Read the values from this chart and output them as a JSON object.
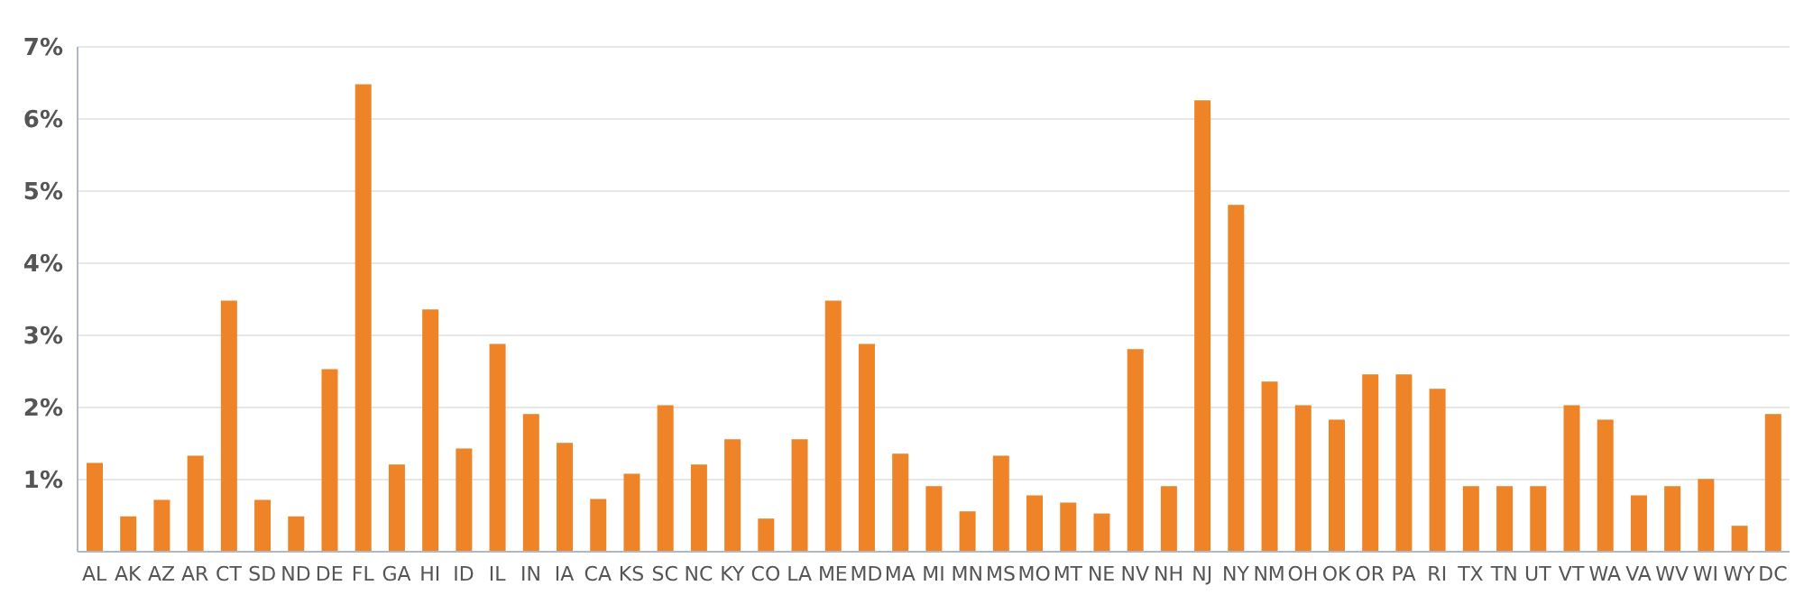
{
  "chart_data": {
    "type": "bar",
    "categories": [
      "AL",
      "AK",
      "AZ",
      "AR",
      "CT",
      "SD",
      "ND",
      "DE",
      "FL",
      "GA",
      "HI",
      "ID",
      "IL",
      "IN",
      "IA",
      "CA",
      "KS",
      "SC",
      "NC",
      "KY",
      "CO",
      "LA",
      "ME",
      "MD",
      "MA",
      "MI",
      "MN",
      "MS",
      "MO",
      "MT",
      "NE",
      "NV",
      "NH",
      "NJ",
      "NY",
      "NM",
      "OH",
      "OK",
      "OR",
      "PA",
      "RI",
      "TX",
      "TN",
      "UT",
      "VT",
      "WA",
      "VA",
      "WV",
      "WI",
      "WY",
      "DC"
    ],
    "values": [
      1.23,
      0.49,
      0.72,
      1.33,
      3.48,
      0.72,
      0.49,
      2.53,
      6.48,
      1.21,
      3.36,
      1.43,
      2.88,
      1.91,
      1.51,
      0.73,
      1.08,
      2.03,
      1.21,
      1.56,
      0.46,
      1.56,
      3.48,
      2.88,
      1.36,
      0.91,
      0.56,
      1.33,
      0.78,
      0.68,
      0.53,
      2.81,
      0.91,
      6.26,
      4.81,
      2.36,
      2.03,
      1.83,
      2.46,
      2.46,
      2.26,
      0.91,
      0.91,
      0.91,
      2.03,
      1.83,
      0.78,
      0.91,
      1.01,
      0.36,
      1.91
    ],
    "color": "#ee8427",
    "ylim": [
      0,
      7
    ],
    "yticks": [
      {
        "value": 1,
        "label": "1%"
      },
      {
        "value": 2,
        "label": "2%"
      },
      {
        "value": 3,
        "label": "3%"
      },
      {
        "value": 4,
        "label": "4%"
      },
      {
        "value": 5,
        "label": "5%"
      },
      {
        "value": 6,
        "label": "6%"
      },
      {
        "value": 7,
        "label": "7%"
      }
    ],
    "grid": "y"
  }
}
